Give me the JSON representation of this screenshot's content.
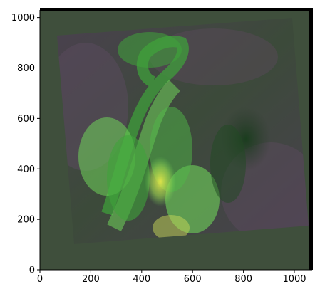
{
  "image": {
    "subject": "solar-active-region-composite",
    "colors": {
      "background_fill": "#3f4f3c",
      "frame": "#000000",
      "bright_green": "#6fd45a",
      "mid_green": "#3fa43a",
      "dark_green": "#1f4a22",
      "purple_haze": "#5a4a5c",
      "yellow_core": "#e6e84a"
    },
    "axes": {
      "x_ticks": [
        "0",
        "200",
        "400",
        "600",
        "800",
        "1000"
      ],
      "y_ticks": [
        "0",
        "200",
        "400",
        "600",
        "800",
        "1000"
      ],
      "x_values": [
        0,
        200,
        400,
        600,
        800,
        1000
      ],
      "y_values": [
        0,
        200,
        400,
        600,
        800,
        1000
      ],
      "x_range": [
        0,
        1070
      ],
      "y_range": [
        0,
        1030
      ]
    }
  }
}
